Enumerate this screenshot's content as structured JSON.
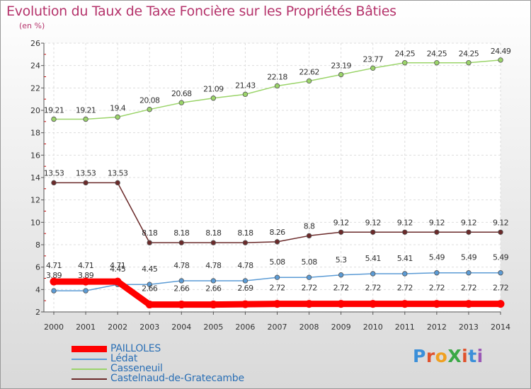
{
  "header": {
    "title": "Evolution du Taux de Taxe Foncière sur les Propriétés Bâties",
    "subtitle": "(en %)"
  },
  "logo": {
    "text": "ProXiti"
  },
  "chart_data": {
    "type": "line",
    "title": "Evolution du Taux de Taxe Foncière sur les Propriétés Bâties",
    "ylabel": "(en %)",
    "xlabel": "",
    "ylim": [
      2,
      26
    ],
    "yticks": [
      "2",
      "4",
      "6",
      "8",
      "10",
      "12",
      "14",
      "16",
      "18",
      "20",
      "22",
      "24",
      "26"
    ],
    "grid": true,
    "legend": "bottom-left",
    "categories": [
      "2000",
      "2001",
      "2002",
      "2003",
      "2004",
      "2005",
      "2006",
      "2007",
      "2008",
      "2009",
      "2010",
      "2011",
      "2012",
      "2013",
      "2014"
    ],
    "series": [
      {
        "name": "PAILLOLES",
        "color": "#ff0000",
        "values": [
          4.71,
          4.71,
          4.71,
          2.66,
          2.66,
          2.66,
          2.69,
          2.72,
          2.72,
          2.72,
          2.72,
          2.72,
          2.72,
          2.72,
          2.72
        ],
        "labels": [
          "4.71",
          "4.71",
          "4.71",
          "2.66",
          "2.66",
          "2.66",
          "2.69",
          "2.72",
          "2.72",
          "2.72",
          "2.72",
          "2.72",
          "2.72",
          "2.72",
          "2.72"
        ]
      },
      {
        "name": "Lédat",
        "color": "#5b9bd5",
        "values": [
          3.89,
          3.89,
          4.45,
          4.45,
          4.78,
          4.78,
          4.78,
          5.08,
          5.08,
          5.3,
          5.41,
          5.41,
          5.49,
          5.49,
          5.49
        ],
        "labels": [
          "3.89",
          "3.89",
          "4.45",
          "4.45",
          "4.78",
          "4.78",
          "4.78",
          "5.08",
          "5.08",
          "5.3",
          "5.41",
          "5.41",
          "5.49",
          "5.49",
          "5.49"
        ]
      },
      {
        "name": "Casseneuil",
        "color": "#9bd46a",
        "values": [
          19.21,
          19.21,
          19.4,
          20.08,
          20.68,
          21.09,
          21.43,
          22.18,
          22.62,
          23.19,
          23.77,
          24.25,
          24.25,
          24.25,
          24.49
        ],
        "labels": [
          "19.21",
          "19.21",
          "19.4",
          "20.08",
          "20.68",
          "21.09",
          "21.43",
          "22.18",
          "22.62",
          "23.19",
          "23.77",
          "24.25",
          "24.25",
          "24.25",
          "24.49"
        ]
      },
      {
        "name": "Castelnaud-de-Gratecambe",
        "color": "#6b2a2a",
        "values": [
          13.53,
          13.53,
          13.53,
          8.18,
          8.18,
          8.18,
          8.18,
          8.26,
          8.8,
          9.12,
          9.12,
          9.12,
          9.12,
          9.12,
          9.12
        ],
        "labels": [
          "13.53",
          "13.53",
          "13.53",
          "8.18",
          "8.18",
          "8.18",
          "8.18",
          "8.26",
          "8.8",
          "9.12",
          "9.12",
          "9.12",
          "9.12",
          "9.12",
          "9.12"
        ]
      }
    ]
  }
}
